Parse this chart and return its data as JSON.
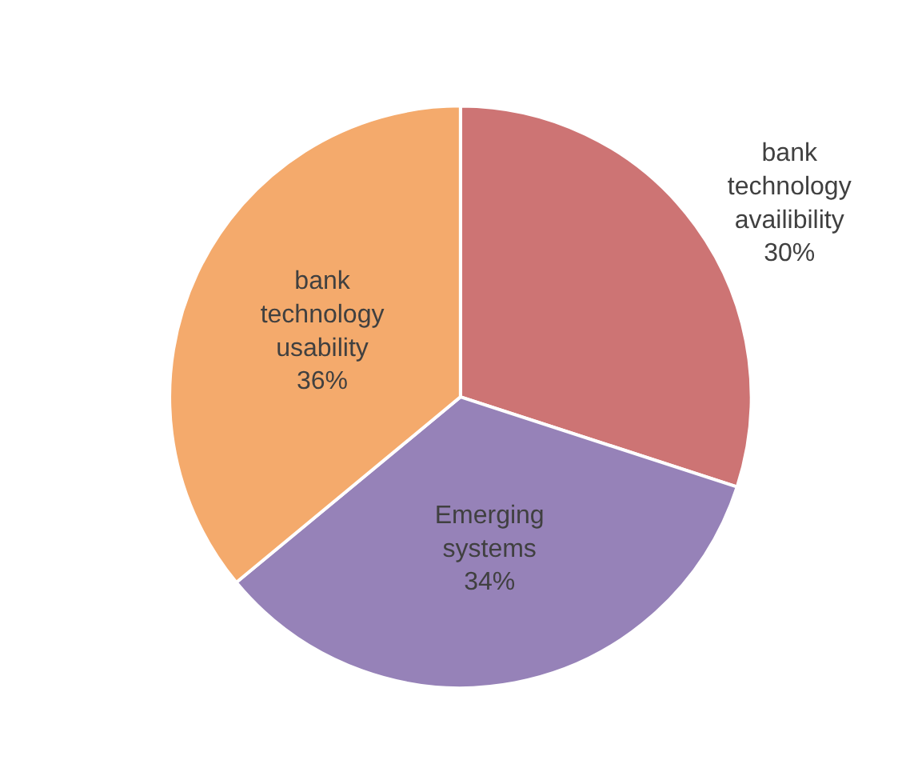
{
  "chart_data": {
    "type": "pie",
    "categories": [
      "bank technology availibility",
      "Emerging systems",
      "bank technology usability"
    ],
    "values": [
      30,
      34,
      36
    ],
    "value_labels": [
      "30%",
      "34%",
      "36%"
    ],
    "colors": [
      "#cd7474",
      "#9682b8",
      "#f4aa6c"
    ],
    "legend": false
  }
}
